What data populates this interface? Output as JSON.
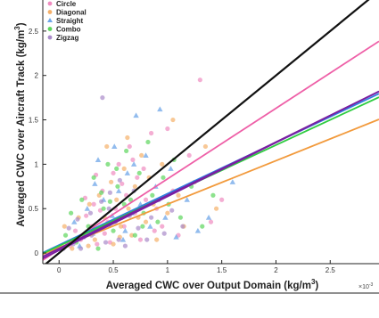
{
  "chart_data": {
    "type": "scatter",
    "xlabel": "Averaged CWC over Output Domain (kg/m",
    "xlabel_sup": "3",
    "xlabel_end": ")",
    "ylabel": "Averaged CWC over Aircraft Track (kg/m",
    "ylabel_sup": "3",
    "ylabel_end": ")",
    "x_exponent_label": "×10",
    "x_exponent_sup": "-3",
    "xlim": [
      -0.15,
      2.95
    ],
    "ylim": [
      -0.12,
      2.85
    ],
    "xticks": [
      0,
      0.5,
      1,
      1.5,
      2,
      2.5
    ],
    "xtick_labels": [
      "0",
      "0.5",
      "1",
      "1.5",
      "2",
      "2.5"
    ],
    "yticks": [
      0,
      0.5,
      1,
      1.5,
      2,
      2.5
    ],
    "ytick_labels": [
      "0",
      "0.5",
      "1",
      "1.5",
      "2",
      "2.5"
    ],
    "legend_position": "top-left",
    "series": [
      {
        "name": "Circle",
        "color": "#f08cc0",
        "marker": "circle",
        "points": [
          [
            0.1,
            0.08
          ],
          [
            0.15,
            0.25
          ],
          [
            0.2,
            0.15
          ],
          [
            0.25,
            0.42
          ],
          [
            0.3,
            0.3
          ],
          [
            0.32,
            0.55
          ],
          [
            0.35,
            0.1
          ],
          [
            0.4,
            0.7
          ],
          [
            0.45,
            0.35
          ],
          [
            0.5,
            0.9
          ],
          [
            0.52,
            0.5
          ],
          [
            0.55,
            1.0
          ],
          [
            0.6,
            0.3
          ],
          [
            0.62,
            0.65
          ],
          [
            0.65,
            1.2
          ],
          [
            0.7,
            0.45
          ],
          [
            0.72,
            0.85
          ],
          [
            0.75,
            0.15
          ],
          [
            0.8,
            0.6
          ],
          [
            0.85,
            1.35
          ],
          [
            0.9,
            0.5
          ],
          [
            0.95,
            0.3
          ],
          [
            1.0,
            1.4
          ],
          [
            1.05,
            0.7
          ],
          [
            1.1,
            0.2
          ],
          [
            1.2,
            1.1
          ],
          [
            1.3,
            1.95
          ],
          [
            1.4,
            0.35
          ],
          [
            1.5,
            0.6
          ],
          [
            0.42,
            0.22
          ],
          [
            0.58,
            0.78
          ],
          [
            0.68,
            1.05
          ],
          [
            0.38,
            0.48
          ],
          [
            0.47,
            0.12
          ],
          [
            0.78,
            0.95
          ],
          [
            0.88,
            0.25
          ],
          [
            0.24,
            0.62
          ],
          [
            0.34,
            0.88
          ]
        ]
      },
      {
        "name": "Diagonal",
        "color": "#f5b06a",
        "marker": "circle",
        "points": [
          [
            0.05,
            0.3
          ],
          [
            0.12,
            0.05
          ],
          [
            0.18,
            0.4
          ],
          [
            0.22,
            0.2
          ],
          [
            0.28,
            0.55
          ],
          [
            0.33,
            0.15
          ],
          [
            0.37,
            0.65
          ],
          [
            0.42,
            0.4
          ],
          [
            0.48,
            0.8
          ],
          [
            0.5,
            0.1
          ],
          [
            0.53,
            0.6
          ],
          [
            0.57,
            0.3
          ],
          [
            0.6,
            0.95
          ],
          [
            0.64,
            0.5
          ],
          [
            0.67,
            0.2
          ],
          [
            0.7,
            0.75
          ],
          [
            0.73,
            0.4
          ],
          [
            0.76,
            1.1
          ],
          [
            0.8,
            0.35
          ],
          [
            0.83,
            0.85
          ],
          [
            0.87,
            0.55
          ],
          [
            0.9,
            0.15
          ],
          [
            0.95,
            1.0
          ],
          [
            1.0,
            0.45
          ],
          [
            1.05,
            1.5
          ],
          [
            1.1,
            0.65
          ],
          [
            1.15,
            0.3
          ],
          [
            1.25,
            0.8
          ],
          [
            1.35,
            1.2
          ],
          [
            1.45,
            0.5
          ],
          [
            0.44,
            1.2
          ],
          [
            0.56,
            0.18
          ],
          [
            0.63,
            1.3
          ],
          [
            0.27,
            0.08
          ]
        ]
      },
      {
        "name": "Straight",
        "color": "#6ea6e8",
        "marker": "triangle",
        "points": [
          [
            0.08,
            0.12
          ],
          [
            0.14,
            0.35
          ],
          [
            0.19,
            0.08
          ],
          [
            0.26,
            0.5
          ],
          [
            0.31,
            0.22
          ],
          [
            0.36,
            1.05
          ],
          [
            0.41,
            0.6
          ],
          [
            0.46,
            0.32
          ],
          [
            0.51,
            1.2
          ],
          [
            0.55,
            0.7
          ],
          [
            0.59,
            0.15
          ],
          [
            0.63,
            0.9
          ],
          [
            0.67,
            0.45
          ],
          [
            0.71,
            1.55
          ],
          [
            0.75,
            0.55
          ],
          [
            0.8,
            1.1
          ],
          [
            0.84,
            0.3
          ],
          [
            0.89,
            0.75
          ],
          [
            0.93,
            1.62
          ],
          [
            0.98,
            0.4
          ],
          [
            1.03,
            0.95
          ],
          [
            1.08,
            0.18
          ],
          [
            1.18,
            0.6
          ],
          [
            1.28,
            0.25
          ],
          [
            1.38,
            0.4
          ],
          [
            1.6,
            0.8
          ],
          [
            0.33,
            0.78
          ],
          [
            0.49,
            0.42
          ],
          [
            0.61,
            0.25
          ],
          [
            0.69,
            1.0
          ]
        ]
      },
      {
        "name": "Combo",
        "color": "#5cd65c",
        "marker": "circle",
        "points": [
          [
            0.06,
            0.2
          ],
          [
            0.11,
            0.45
          ],
          [
            0.16,
            0.12
          ],
          [
            0.21,
            0.6
          ],
          [
            0.27,
            0.3
          ],
          [
            0.32,
            0.85
          ],
          [
            0.36,
            0.05
          ],
          [
            0.41,
            0.5
          ],
          [
            0.45,
            1.0
          ],
          [
            0.5,
            0.25
          ],
          [
            0.54,
            0.75
          ],
          [
            0.58,
            0.4
          ],
          [
            0.62,
            1.15
          ],
          [
            0.66,
            0.6
          ],
          [
            0.7,
            0.2
          ],
          [
            0.74,
            0.9
          ],
          [
            0.78,
            0.45
          ],
          [
            0.82,
            1.25
          ],
          [
            0.86,
            0.65
          ],
          [
            0.91,
            0.35
          ],
          [
            0.96,
            0.85
          ],
          [
            1.01,
            0.55
          ],
          [
            1.06,
            1.05
          ],
          [
            1.12,
            0.4
          ],
          [
            1.22,
            0.75
          ],
          [
            1.32,
            0.3
          ],
          [
            1.42,
            0.65
          ],
          [
            0.39,
            0.68
          ],
          [
            0.47,
            0.58
          ],
          [
            0.53,
            0.95
          ],
          [
            0.6,
            0.55
          ],
          [
            0.77,
            0.3
          ]
        ]
      },
      {
        "name": "Zigzag",
        "color": "#a98ac9",
        "marker": "circle",
        "points": [
          [
            0.04,
            0.05
          ],
          [
            0.09,
            0.28
          ],
          [
            0.13,
            0.1
          ],
          [
            0.17,
            0.38
          ],
          [
            0.23,
            0.18
          ],
          [
            0.29,
            0.45
          ],
          [
            0.34,
            0.25
          ],
          [
            0.39,
            0.58
          ],
          [
            0.43,
            0.12
          ],
          [
            0.47,
            0.68
          ],
          [
            0.52,
            0.35
          ],
          [
            0.56,
            0.82
          ],
          [
            0.61,
            0.08
          ],
          [
            0.65,
            0.42
          ],
          [
            0.69,
            0.7
          ],
          [
            0.73,
            0.28
          ],
          [
            0.77,
            0.52
          ],
          [
            0.81,
            0.15
          ],
          [
            0.85,
            0.4
          ],
          [
            0.92,
            0.6
          ],
          [
            0.97,
            0.22
          ],
          [
            1.04,
            0.48
          ],
          [
            1.14,
            0.3
          ],
          [
            0.4,
            1.75
          ],
          [
            0.3,
            0.2
          ],
          [
            0.46,
            0.5
          ],
          [
            0.55,
            0.15
          ],
          [
            0.2,
            0.05
          ]
        ]
      }
    ],
    "fit_lines": [
      {
        "series": "Circle",
        "color": "#ee5fa7",
        "y0": 0.04,
        "slope": 0.795
      },
      {
        "series": "Diagonal",
        "color": "#f29a3c",
        "y0": 0.06,
        "slope": 0.49
      },
      {
        "series": "Straight",
        "color": "#2f7fe0",
        "y0": 0.09,
        "slope": 0.578
      },
      {
        "series": "Combo",
        "color": "#2ecc40",
        "y0": 0.08,
        "slope": 0.568
      },
      {
        "series": "Zigzag",
        "color": "#7a1fa2",
        "y0": 0.03,
        "slope": 0.607
      },
      {
        "series": "Zigzag",
        "color": "#7a1fa2",
        "y0": 0.05,
        "slope": 0.6
      },
      {
        "series": "",
        "color": "#111111",
        "y0": 0.0,
        "slope": 1.0
      }
    ]
  }
}
